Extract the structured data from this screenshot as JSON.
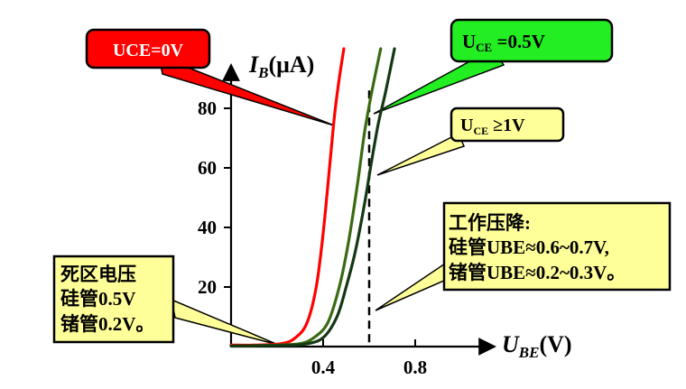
{
  "chart_data": {
    "type": "line",
    "title": "",
    "xlabel": {
      "symbol": "U",
      "subscript": "BE",
      "unit": "(V)"
    },
    "ylabel": {
      "symbol": "I",
      "subscript": "B",
      "unit": "(μA)"
    },
    "xlim": [
      0,
      1.0
    ],
    "ylim": [
      0,
      100
    ],
    "x_ticks": [
      {
        "value": 0.4,
        "label": "0.4"
      },
      {
        "value": 0.8,
        "label": "0.8"
      }
    ],
    "y_ticks": [
      {
        "value": 20,
        "label": "20"
      },
      {
        "value": 40,
        "label": "40"
      },
      {
        "value": 60,
        "label": "60"
      },
      {
        "value": 80,
        "label": "80"
      }
    ],
    "threshold_line_x": 0.6,
    "series": [
      {
        "name": "UCE=0V",
        "color": "#ff0000",
        "points": [
          [
            0.0,
            0.5
          ],
          [
            0.1,
            0.5
          ],
          [
            0.22,
            1.0
          ],
          [
            0.28,
            3.0
          ],
          [
            0.33,
            8.0
          ],
          [
            0.37,
            20.0
          ],
          [
            0.4,
            38.0
          ],
          [
            0.43,
            62.0
          ],
          [
            0.45,
            78.0
          ],
          [
            0.47,
            90.0
          ],
          [
            0.49,
            100.0
          ]
        ]
      },
      {
        "name": "UCE=0.5V",
        "color": "#3a6b12",
        "points": [
          [
            0.0,
            0.2
          ],
          [
            0.2,
            0.5
          ],
          [
            0.3,
            1.0
          ],
          [
            0.36,
            3.0
          ],
          [
            0.42,
            8.0
          ],
          [
            0.47,
            20.0
          ],
          [
            0.51,
            35.0
          ],
          [
            0.55,
            55.0
          ],
          [
            0.58,
            72.0
          ],
          [
            0.61,
            85.0
          ],
          [
            0.65,
            100.0
          ]
        ]
      },
      {
        "name": "UCE≥1V",
        "color": "#133813",
        "points": [
          [
            0.0,
            0.2
          ],
          [
            0.22,
            0.4
          ],
          [
            0.32,
            0.8
          ],
          [
            0.4,
            3.0
          ],
          [
            0.46,
            10.0
          ],
          [
            0.5,
            20.0
          ],
          [
            0.54,
            32.0
          ],
          [
            0.58,
            48.0
          ],
          [
            0.61,
            62.0
          ],
          [
            0.64,
            75.0
          ],
          [
            0.67,
            85.0
          ],
          [
            0.71,
            100.0
          ]
        ]
      }
    ]
  },
  "callouts": {
    "uce0": {
      "label": "UCE=0V",
      "fill": "#ff0000",
      "text_color": "#ffffff"
    },
    "uce05": {
      "symbol": "U",
      "subscript": "CE",
      "suffix": " =0.5V",
      "fill": "#22ee22",
      "text_color": "#000000"
    },
    "uce1": {
      "symbol": "U",
      "subscript": "CE",
      "suffix": " ≥1V",
      "fill": "#ffff99",
      "text_color": "#000000"
    },
    "work_drop": {
      "lines": [
        "工作压降:",
        "硅管UBE≈0.6~0.7V,",
        "锗管UBE≈0.2~0.3V。"
      ],
      "fill": "#ffff99"
    },
    "dead_zone": {
      "lines": [
        "死区电压",
        "硅管0.5V",
        "锗管0.2V。"
      ],
      "fill": "#ffff99"
    }
  }
}
